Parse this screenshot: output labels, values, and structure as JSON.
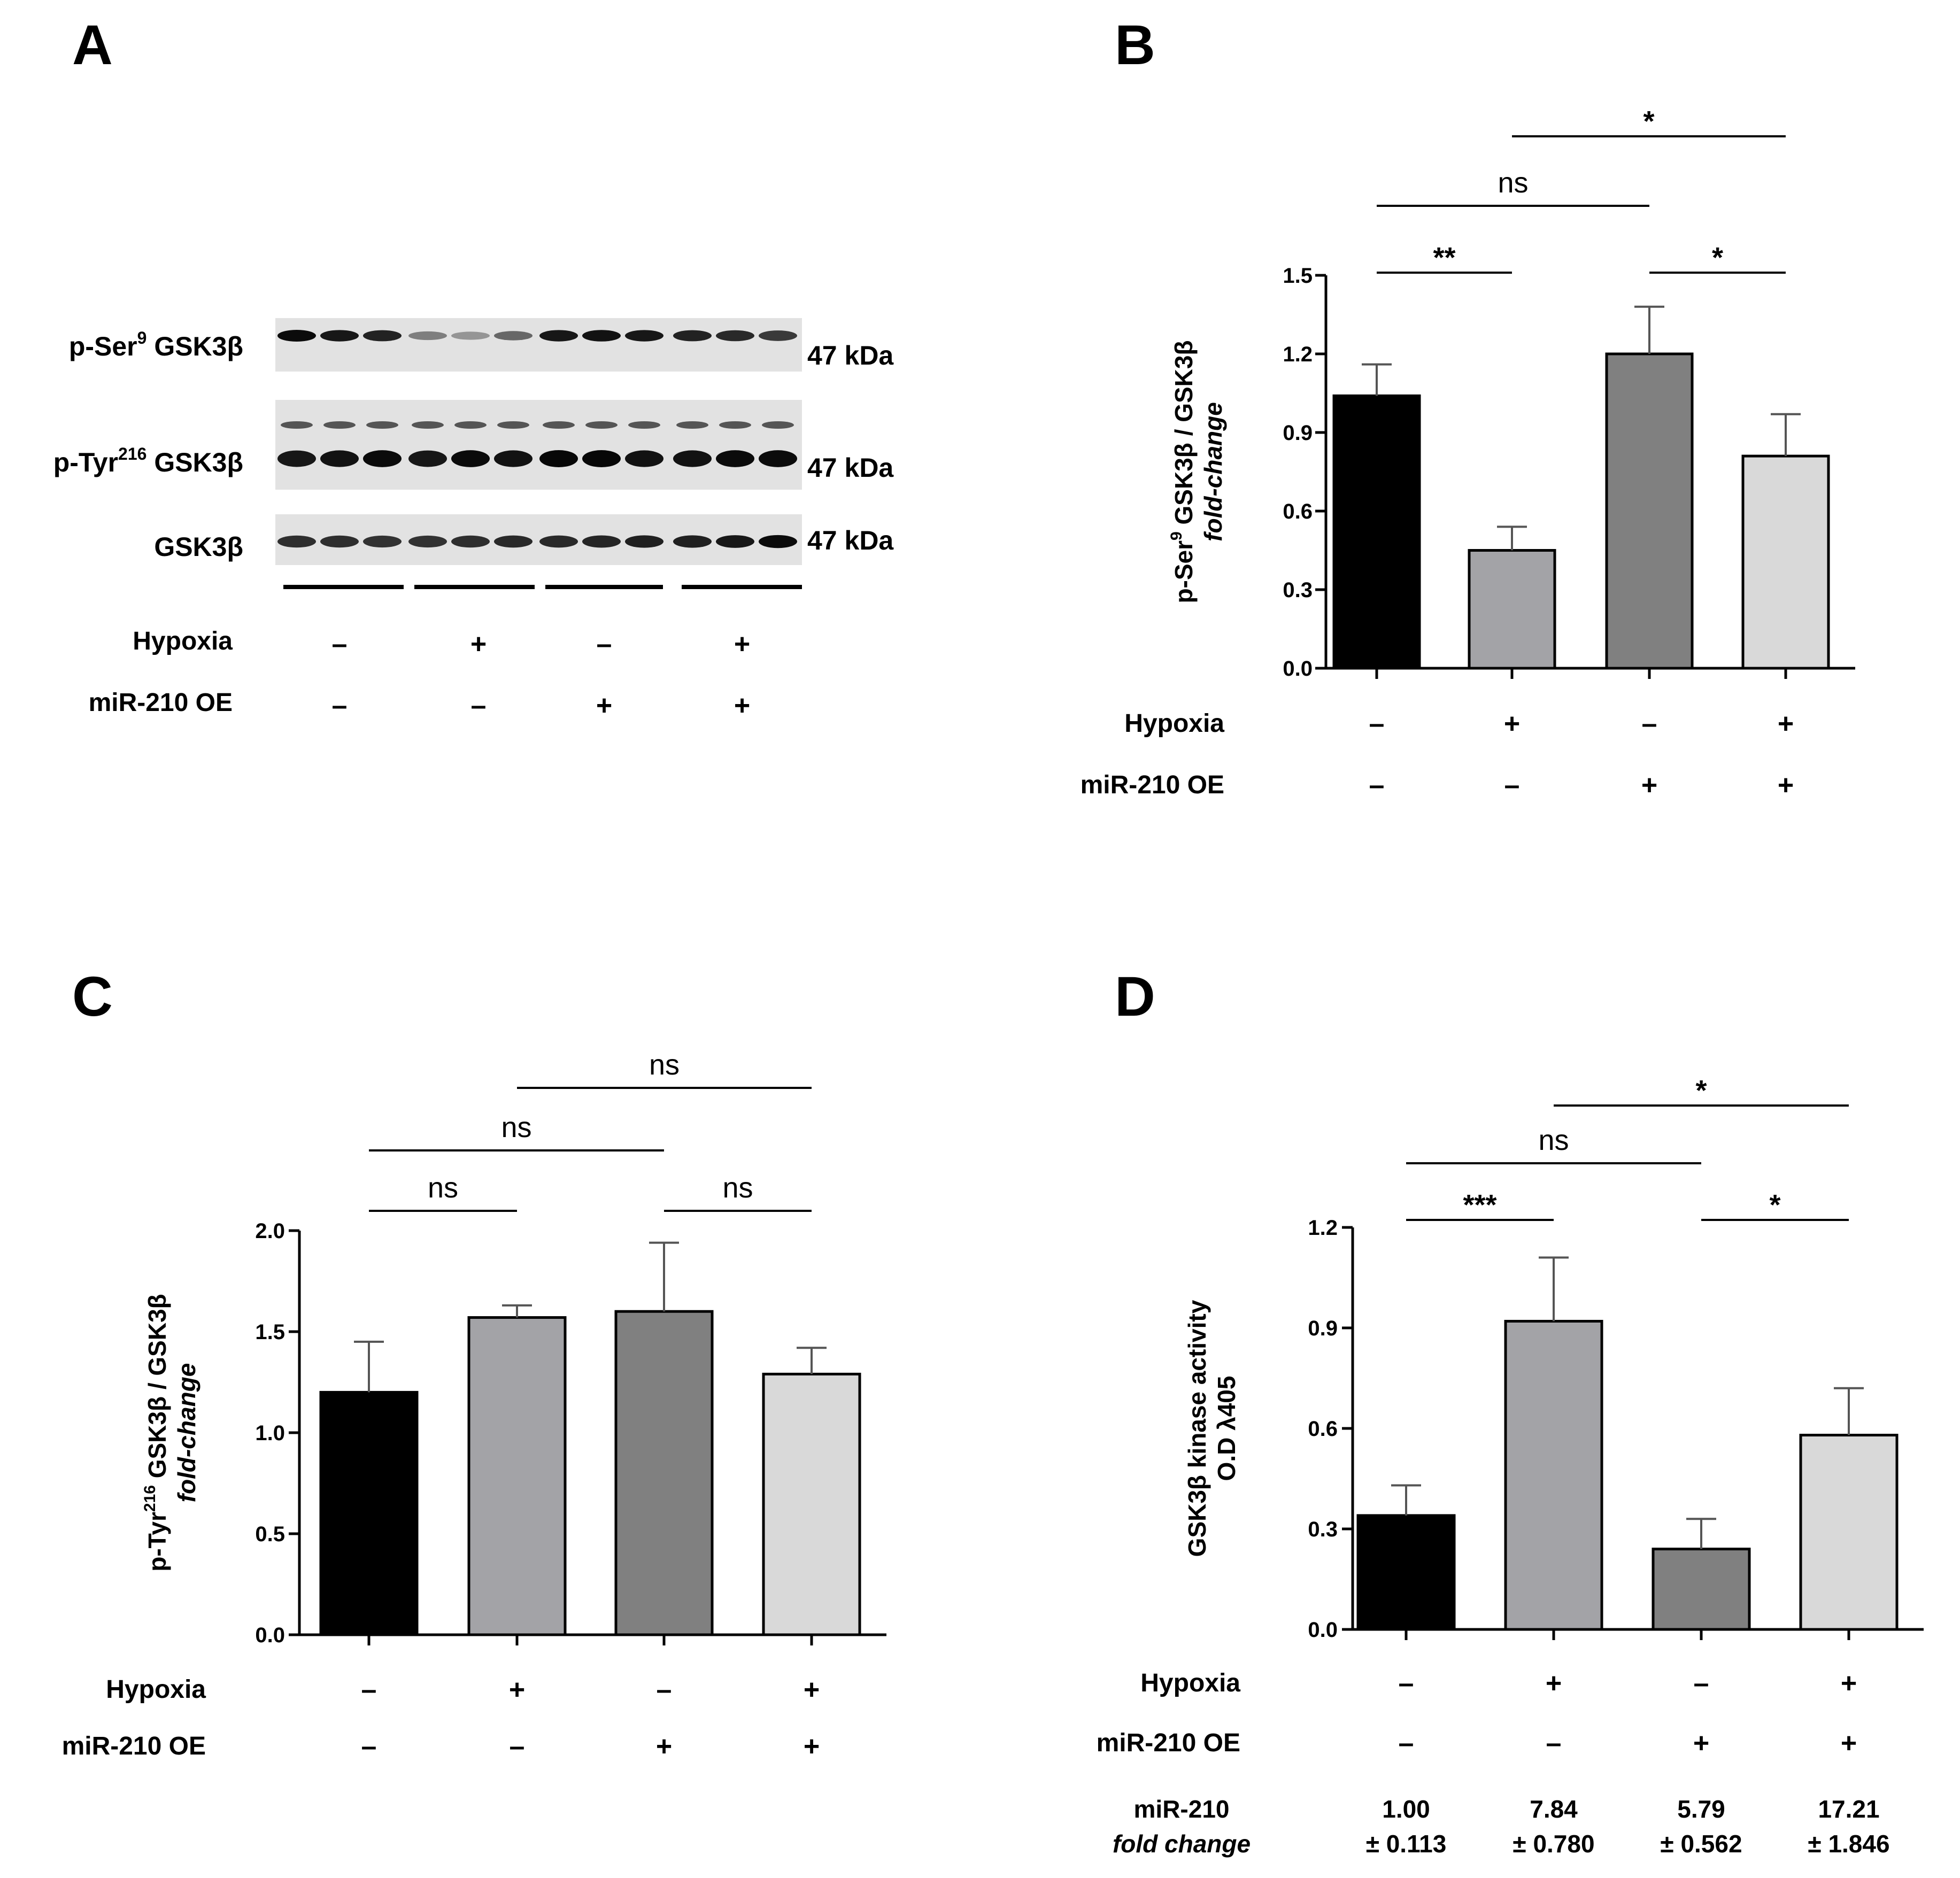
{
  "figure": {
    "panels": [
      "A",
      "B",
      "C",
      "D"
    ]
  },
  "blot": {
    "bands": [
      {
        "label_prefix": "p-Ser",
        "label_sup": "9",
        "label_suffix": " GSK3β",
        "kda": "47 kDa",
        "intensities": [
          0.95,
          0.9,
          0.85,
          0.45,
          0.35,
          0.55,
          0.9,
          0.92,
          0.9,
          0.85,
          0.82,
          0.75
        ]
      },
      {
        "label_prefix": "p-Tyr",
        "label_sup": "216",
        "label_suffix": " GSK3β",
        "kda": "47 kDa",
        "intensities": [
          0.9,
          0.92,
          0.95,
          0.9,
          0.95,
          0.92,
          0.97,
          0.97,
          0.92,
          0.92,
          0.95,
          0.95
        ]
      },
      {
        "label_prefix": "GSK3β",
        "label_sup": "",
        "label_suffix": "",
        "kda": "47 kDa",
        "intensities": [
          0.8,
          0.8,
          0.78,
          0.78,
          0.8,
          0.82,
          0.82,
          0.84,
          0.86,
          0.86,
          0.9,
          0.95
        ]
      }
    ]
  },
  "conditions": {
    "row1_label": "Hypoxia",
    "row2_label": "miR-210 OE",
    "hypoxia": [
      "–",
      "+",
      "–",
      "+"
    ],
    "mir210": [
      "–",
      "–",
      "+",
      "+"
    ]
  },
  "panelD_footer": {
    "label_line1": "miR-210",
    "label_line2": "fold change",
    "values": [
      "1.00",
      "7.84",
      "5.79",
      "17.21"
    ],
    "errors": [
      "± 0.113",
      "± 0.780",
      "± 0.562",
      "± 1.846"
    ]
  },
  "colors": {
    "bars": [
      "#000000",
      "#a3a3a7",
      "#808080",
      "#d9d9d9"
    ]
  },
  "chart_data": [
    {
      "panel": "B",
      "type": "bar",
      "categories": [
        "Hypoxia – / miR-210 OE –",
        "Hypoxia + / miR-210 OE –",
        "Hypoxia – / miR-210 OE +",
        "Hypoxia + / miR-210 OE +"
      ],
      "values": [
        1.04,
        0.45,
        1.2,
        0.81
      ],
      "errors": [
        0.12,
        0.09,
        0.18,
        0.16
      ],
      "ylim": [
        0,
        1.5
      ],
      "yticks": [
        "0.0",
        "0.3",
        "0.6",
        "0.9",
        "1.2",
        "1.5"
      ],
      "ylabel_prefix": "p-Ser",
      "ylabel_sup": "9",
      "ylabel_suffix": " GSK3β / GSK3β",
      "ylabel_line2": "fold-change",
      "significance": [
        {
          "from": 0,
          "to": 1,
          "label": "**",
          "tier": 1
        },
        {
          "from": 2,
          "to": 3,
          "label": "*",
          "tier": 1
        },
        {
          "from": 0,
          "to": 2,
          "label": "ns",
          "tier": 2
        },
        {
          "from": 1,
          "to": 3,
          "label": "*",
          "tier": 3
        }
      ]
    },
    {
      "panel": "C",
      "type": "bar",
      "categories": [
        "Hypoxia – / miR-210 OE –",
        "Hypoxia + / miR-210 OE –",
        "Hypoxia – / miR-210 OE +",
        "Hypoxia + / miR-210 OE +"
      ],
      "values": [
        1.2,
        1.57,
        1.6,
        1.29
      ],
      "errors": [
        0.25,
        0.06,
        0.34,
        0.13
      ],
      "ylim": [
        0,
        2.0
      ],
      "yticks": [
        "0.0",
        "0.5",
        "1.0",
        "1.5",
        "2.0"
      ],
      "ylabel_prefix": "p-Tyr",
      "ylabel_sup": "216",
      "ylabel_suffix": " GSK3β / GSK3β",
      "ylabel_line2": "fold-change",
      "significance": [
        {
          "from": 0,
          "to": 1,
          "label": "ns",
          "tier": 1
        },
        {
          "from": 2,
          "to": 3,
          "label": "ns",
          "tier": 1
        },
        {
          "from": 0,
          "to": 2,
          "label": "ns",
          "tier": 2
        },
        {
          "from": 1,
          "to": 3,
          "label": "ns",
          "tier": 3
        }
      ]
    },
    {
      "panel": "D",
      "type": "bar",
      "categories": [
        "Hypoxia – / miR-210 OE –",
        "Hypoxia + / miR-210 OE –",
        "Hypoxia – / miR-210 OE +",
        "Hypoxia + / miR-210 OE +"
      ],
      "values": [
        0.34,
        0.92,
        0.24,
        0.58
      ],
      "errors": [
        0.09,
        0.19,
        0.09,
        0.14
      ],
      "ylim": [
        0,
        1.2
      ],
      "yticks": [
        "0.0",
        "0.3",
        "0.6",
        "0.9",
        "1.2"
      ],
      "ylabel_line1": "GSK3β kinase activity",
      "ylabel_line2": "O.D λ405",
      "significance": [
        {
          "from": 0,
          "to": 1,
          "label": "***",
          "tier": 1
        },
        {
          "from": 2,
          "to": 3,
          "label": "*",
          "tier": 1
        },
        {
          "from": 0,
          "to": 2,
          "label": "ns",
          "tier": 2
        },
        {
          "from": 1,
          "to": 3,
          "label": "*",
          "tier": 3
        }
      ]
    }
  ]
}
